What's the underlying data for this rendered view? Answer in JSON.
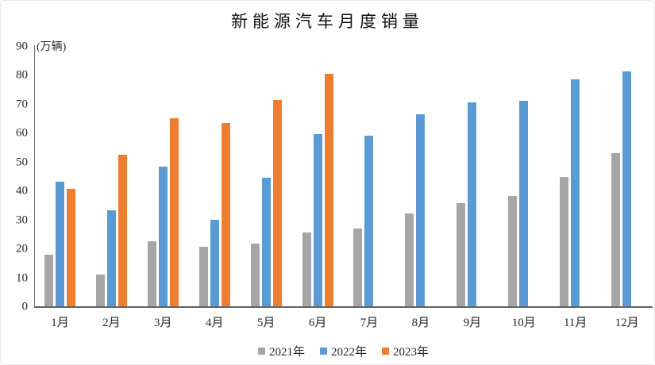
{
  "window": {
    "background": "#ffffff",
    "border_color": "#e9e9e9"
  },
  "chart_data": {
    "type": "bar",
    "title": "新能源汽车月度销量",
    "unit_label": "(万辆)",
    "xlabel": "",
    "ylabel": "万辆",
    "categories": [
      "1月",
      "2月",
      "3月",
      "4月",
      "5月",
      "6月",
      "7月",
      "8月",
      "9月",
      "10月",
      "11月",
      "12月"
    ],
    "series": [
      {
        "name": "2021年",
        "color": "#A6A6A6",
        "values": [
          17.9,
          11.0,
          22.6,
          20.6,
          21.7,
          25.6,
          27.1,
          32.1,
          35.7,
          38.3,
          45.0,
          53.1
        ]
      },
      {
        "name": "2022年",
        "color": "#5B9BD5",
        "values": [
          43.1,
          33.4,
          48.4,
          29.9,
          44.7,
          59.6,
          59.3,
          66.6,
          70.8,
          71.4,
          78.6,
          81.4
        ]
      },
      {
        "name": "2023年",
        "color": "#ED7D31",
        "values": [
          40.8,
          52.5,
          65.3,
          63.6,
          71.7,
          80.6,
          null,
          null,
          null,
          null,
          null,
          null
        ]
      }
    ],
    "ylim": [
      0,
      90
    ],
    "yticks": [
      0,
      10,
      20,
      30,
      40,
      50,
      60,
      70,
      80,
      90
    ],
    "grid": false,
    "legend_position": "bottom",
    "axis_line_color": "#6b6b6b",
    "label_color": "#262626"
  }
}
